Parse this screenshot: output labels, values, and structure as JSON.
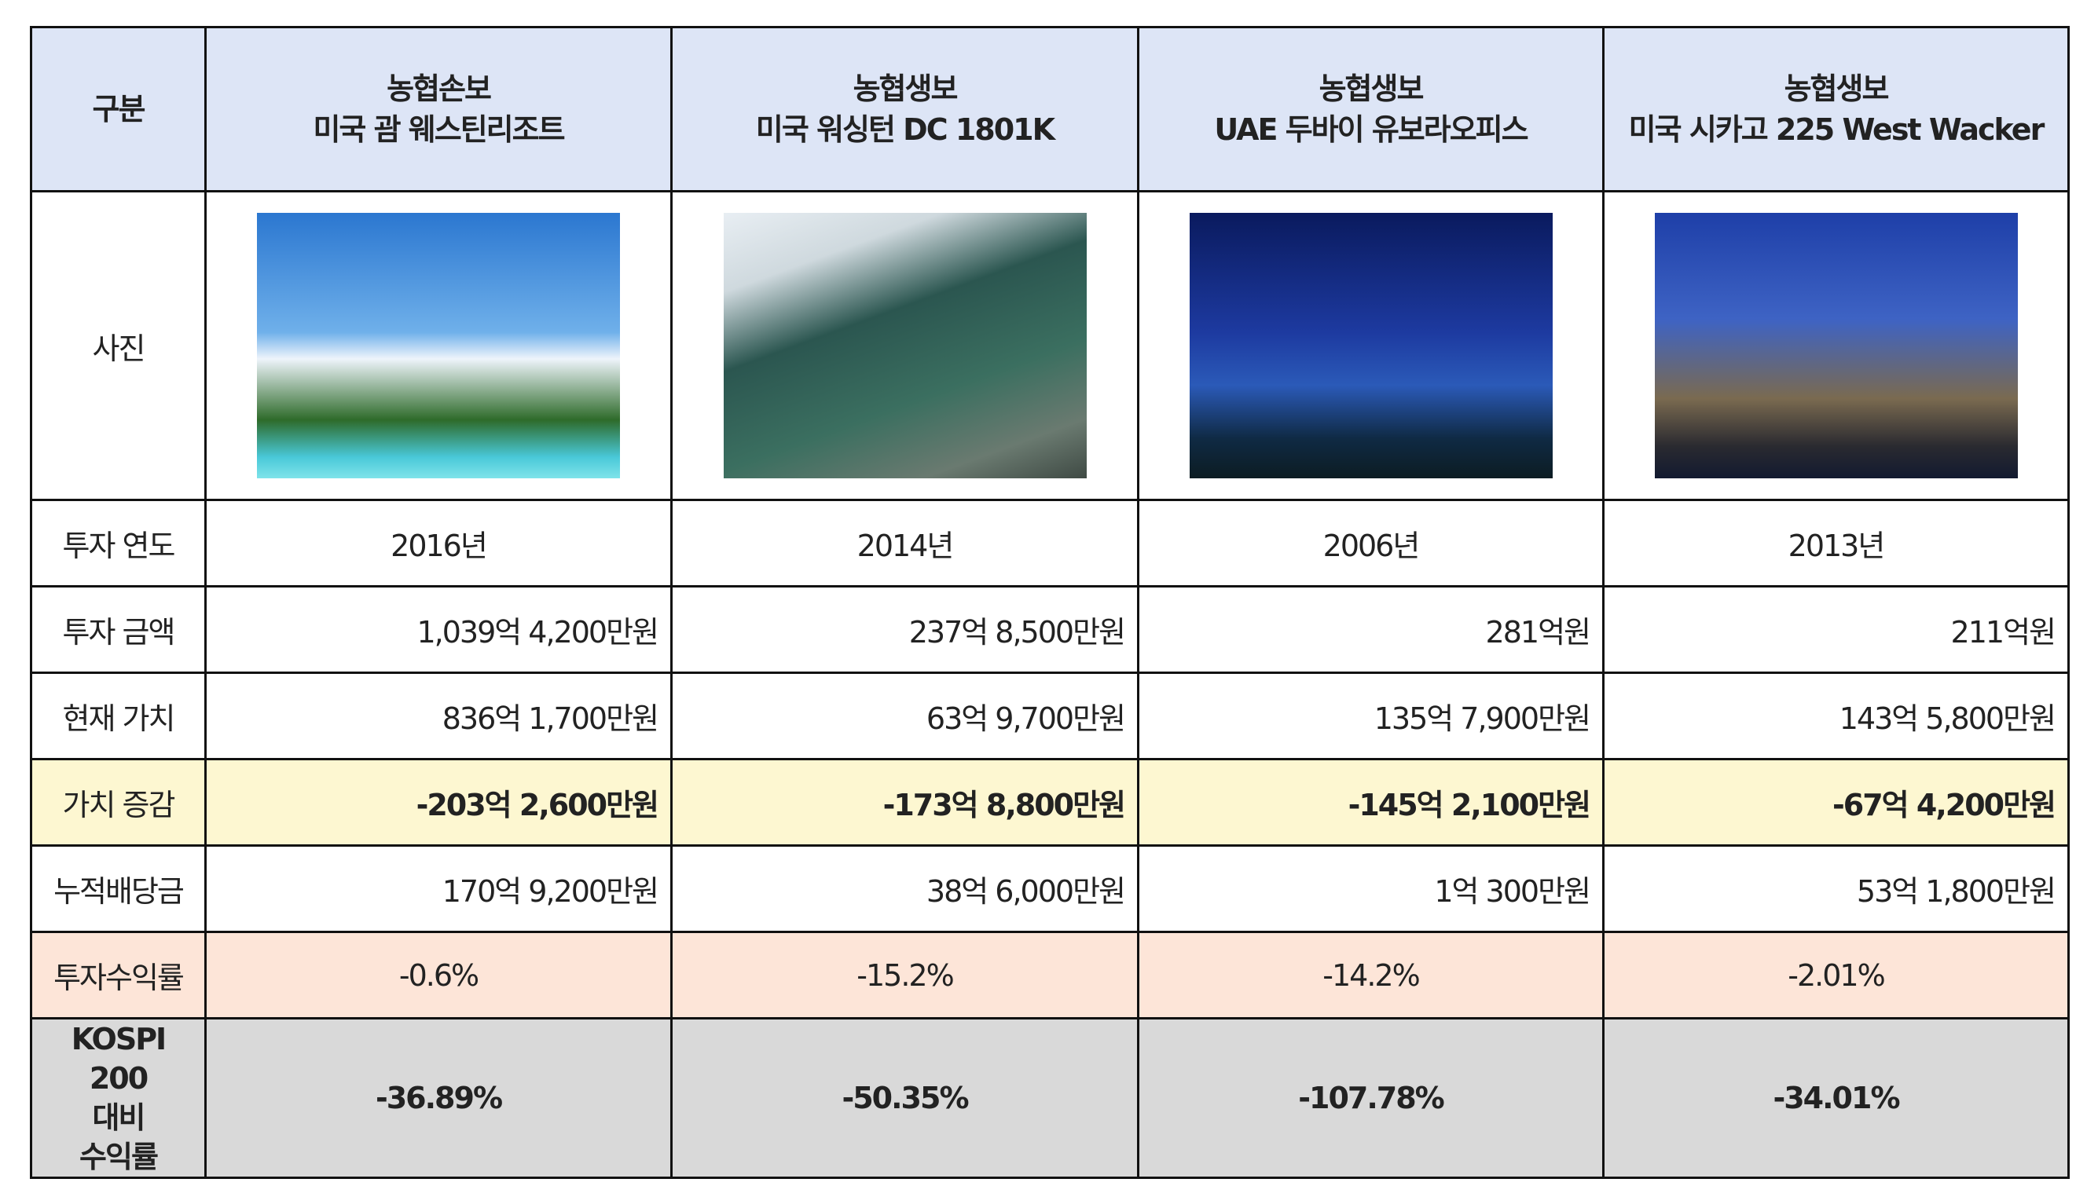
{
  "header": {
    "label": "구분",
    "columns": [
      {
        "line1": "농협손보",
        "line2": "미국 괌 웨스틴리조트"
      },
      {
        "line1": "농협생보",
        "line2": "미국 워싱턴 DC 1801K"
      },
      {
        "line1": "농협생보",
        "line2": "UAE 두바이 유보라오피스"
      },
      {
        "line1": "농협생보",
        "line2": "미국 시카고 225 West Wacker"
      }
    ]
  },
  "rows": {
    "photo": {
      "label": "사진"
    },
    "year": {
      "label": "투자 연도",
      "values": [
        "2016년",
        "2014년",
        "2006년",
        "2013년"
      ]
    },
    "amount": {
      "label": "투자 금액",
      "values": [
        "1,039억 4,200만원",
        "237억 8,500만원",
        "281억원",
        "211억원"
      ]
    },
    "current": {
      "label": "현재 가치",
      "values": [
        "836억 1,700만원",
        "63억 9,700만원",
        "135억 7,900만원",
        "143억 5,800만원"
      ]
    },
    "change": {
      "label": "가치 증감",
      "values": [
        "-203억 2,600만원",
        "-173억 8,800만원",
        "-145억 2,100만원",
        "-67억 4,200만원"
      ]
    },
    "dividend": {
      "label": "누적배당금",
      "values": [
        "170억 9,200만원",
        "38억 6,000만원",
        "1억 300만원",
        "53억 1,800만원"
      ]
    },
    "return": {
      "label": "투자수익률",
      "values": [
        "-0.6%",
        "-15.2%",
        "-14.2%",
        "-2.01%"
      ]
    },
    "kospi": {
      "label1": "KOSPI 200",
      "label2": "대비",
      "label3": "수익률",
      "values": [
        "-36.89%",
        "-50.35%",
        "-107.78%",
        "-34.01%"
      ]
    }
  },
  "colors": {
    "header": "#dde5f6",
    "change_row": "#fdf7d1",
    "return_row": "#fde5d8",
    "kospi_row": "#d9d9d9"
  }
}
